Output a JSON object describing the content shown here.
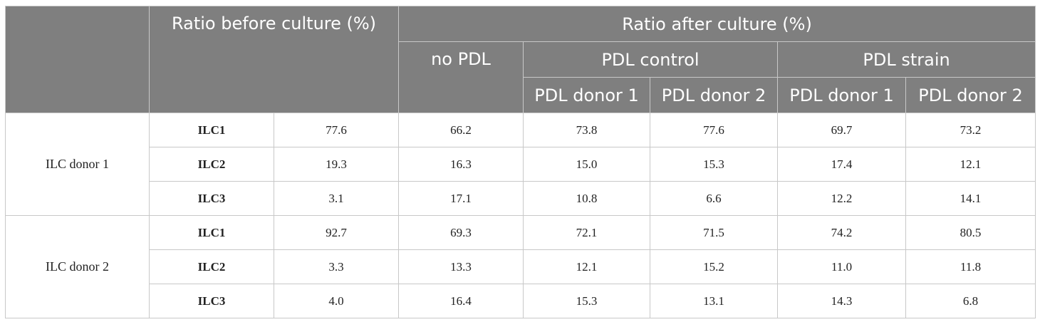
{
  "header": {
    "before": "Ratio before culture (%)",
    "after": "Ratio after culture (%)",
    "no_pdl": "no PDL",
    "pdl_control": "PDL control",
    "pdl_strain": "PDL strain",
    "pdl_donor_1": "PDL donor 1",
    "pdl_donor_2": "PDL donor 2"
  },
  "groups": [
    {
      "donor": "ILC donor 1",
      "rows": [
        {
          "cell": "ILC1",
          "before": "77.6",
          "values": [
            "66.2",
            "73.8",
            "77.6",
            "69.7",
            "73.2"
          ]
        },
        {
          "cell": "ILC2",
          "before": "19.3",
          "values": [
            "16.3",
            "15.0",
            "15.3",
            "17.4",
            "12.1"
          ]
        },
        {
          "cell": "ILC3",
          "before": "3.1",
          "values": [
            "17.1",
            "10.8",
            "6.6",
            "12.2",
            "14.1"
          ]
        }
      ]
    },
    {
      "donor": "ILC donor 2",
      "rows": [
        {
          "cell": "ILC1",
          "before": "92.7",
          "values": [
            "69.3",
            "72.1",
            "71.5",
            "74.2",
            "80.5"
          ]
        },
        {
          "cell": "ILC2",
          "before": "3.3",
          "values": [
            "13.3",
            "12.1",
            "15.2",
            "11.0",
            "11.8"
          ]
        },
        {
          "cell": "ILC3",
          "before": "4.0",
          "values": [
            "16.4",
            "15.3",
            "13.1",
            "14.3",
            "6.8"
          ]
        }
      ]
    }
  ]
}
